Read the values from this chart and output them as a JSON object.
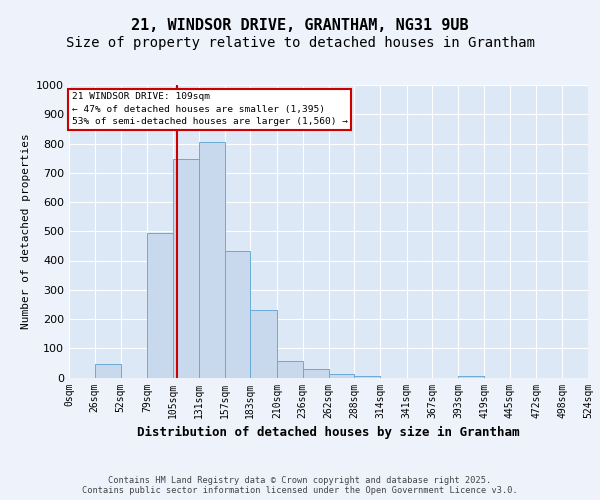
{
  "title1": "21, WINDSOR DRIVE, GRANTHAM, NG31 9UB",
  "title2": "Size of property relative to detached houses in Grantham",
  "xlabel": "Distribution of detached houses by size in Grantham",
  "ylabel": "Number of detached properties",
  "bar_values": [
    0,
    47,
    0,
    494,
    748,
    805,
    432,
    230,
    55,
    30,
    12,
    5,
    0,
    0,
    0,
    5,
    0,
    0,
    0,
    0
  ],
  "bin_edges": [
    0,
    26,
    52,
    79,
    105,
    131,
    157,
    183,
    210,
    236,
    262,
    288,
    314,
    341,
    367,
    393,
    419,
    445,
    472,
    498,
    524
  ],
  "x_tick_labels": [
    "0sqm",
    "26sqm",
    "52sqm",
    "79sqm",
    "105sqm",
    "131sqm",
    "157sqm",
    "183sqm",
    "210sqm",
    "236sqm",
    "262sqm",
    "288sqm",
    "314sqm",
    "341sqm",
    "367sqm",
    "393sqm",
    "419sqm",
    "445sqm",
    "472sqm",
    "498sqm",
    "524sqm"
  ],
  "bar_color": "#c8d9ee",
  "bar_edgecolor": "#6aaad4",
  "vline_x": 109,
  "vline_color": "#cc0000",
  "ylim": [
    0,
    1000
  ],
  "yticks": [
    0,
    100,
    200,
    300,
    400,
    500,
    600,
    700,
    800,
    900,
    1000
  ],
  "annotation_line1": "21 WINDSOR DRIVE: 109sqm",
  "annotation_line2": "← 47% of detached houses are smaller (1,395)",
  "annotation_line3": "53% of semi-detached houses are larger (1,560) →",
  "bg_color": "#eef2fa",
  "plot_bg_color": "#dce8f5",
  "footer_text": "Contains HM Land Registry data © Crown copyright and database right 2025.\nContains public sector information licensed under the Open Government Licence v3.0.",
  "grid_color": "#ffffff",
  "title_fontsize": 11,
  "subtitle_fontsize": 10,
  "tick_fontsize": 7,
  "ylabel_fontsize": 8,
  "xlabel_fontsize": 9
}
